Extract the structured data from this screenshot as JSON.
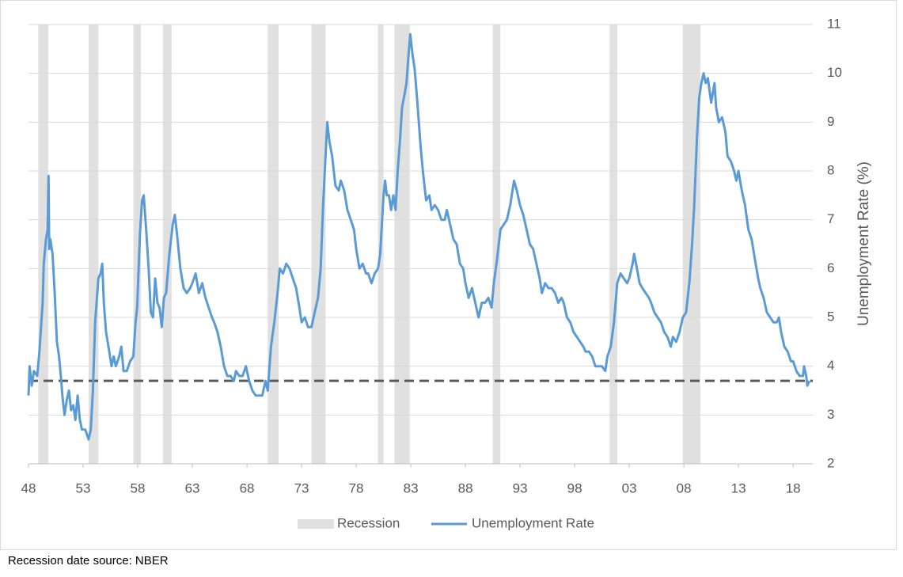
{
  "chart_data": {
    "type": "line",
    "y_label": "Unemployment Rate (%)",
    "footnote": "Recession date source: NBER",
    "xlim": [
      1948,
      2019.8
    ],
    "ylim": [
      2,
      11
    ],
    "xticks": [
      {
        "value": 1948,
        "label": "48"
      },
      {
        "value": 1953,
        "label": "53"
      },
      {
        "value": 1958,
        "label": "58"
      },
      {
        "value": 1963,
        "label": "63"
      },
      {
        "value": 1968,
        "label": "68"
      },
      {
        "value": 1973,
        "label": "73"
      },
      {
        "value": 1978,
        "label": "78"
      },
      {
        "value": 1983,
        "label": "83"
      },
      {
        "value": 1988,
        "label": "88"
      },
      {
        "value": 1993,
        "label": "93"
      },
      {
        "value": 1998,
        "label": "98"
      },
      {
        "value": 2003,
        "label": "03"
      },
      {
        "value": 2008,
        "label": "08"
      },
      {
        "value": 2013,
        "label": "13"
      },
      {
        "value": 2018,
        "label": "18"
      }
    ],
    "yticks": [
      2,
      3,
      4,
      5,
      6,
      7,
      8,
      9,
      10,
      11
    ],
    "grid": true,
    "recessions": {
      "name": "Recession",
      "color": "#e0e0e0",
      "ranges": [
        [
          1948.9,
          1949.8
        ],
        [
          1953.5,
          1954.4
        ],
        [
          1957.6,
          1958.3
        ],
        [
          1960.3,
          1961.1
        ],
        [
          1969.9,
          1970.9
        ],
        [
          1973.9,
          1975.2
        ],
        [
          1980.0,
          1980.5
        ],
        [
          1981.5,
          1982.9
        ],
        [
          1990.5,
          1991.2
        ],
        [
          2001.2,
          2001.9
        ],
        [
          2007.9,
          2009.5
        ]
      ]
    },
    "reference_line": {
      "value": 3.7,
      "color": "#595959"
    },
    "series": [
      {
        "name": "Unemployment Rate",
        "color": "#5b9bd5",
        "x": [
          1948.0,
          1948.1,
          1948.3,
          1948.5,
          1948.8,
          1949.0,
          1949.3,
          1949.4,
          1949.6,
          1949.75,
          1949.83,
          1949.9,
          1950.0,
          1950.2,
          1950.4,
          1950.6,
          1950.8,
          1951.0,
          1951.1,
          1951.3,
          1951.5,
          1951.7,
          1951.9,
          1952.1,
          1952.3,
          1952.5,
          1952.7,
          1952.9,
          1953.2,
          1953.5,
          1953.7,
          1953.9,
          1954.1,
          1954.4,
          1954.6,
          1954.75,
          1954.9,
          1955.1,
          1955.4,
          1955.6,
          1955.8,
          1956.0,
          1956.3,
          1956.5,
          1956.7,
          1957.0,
          1957.3,
          1957.6,
          1957.8,
          1957.95,
          1958.2,
          1958.4,
          1958.55,
          1958.8,
          1959.0,
          1959.2,
          1959.4,
          1959.6,
          1959.8,
          1960.0,
          1960.2,
          1960.4,
          1960.6,
          1960.9,
          1961.2,
          1961.4,
          1961.6,
          1961.9,
          1962.2,
          1962.5,
          1962.8,
          1963.0,
          1963.3,
          1963.6,
          1963.9,
          1964.2,
          1964.5,
          1964.8,
          1965.0,
          1965.3,
          1965.6,
          1965.9,
          1966.2,
          1966.5,
          1966.8,
          1967.0,
          1967.3,
          1967.6,
          1967.9,
          1968.2,
          1968.5,
          1968.8,
          1969.0,
          1969.4,
          1969.7,
          1969.9,
          1970.2,
          1970.5,
          1970.8,
          1971.0,
          1971.3,
          1971.6,
          1971.9,
          1972.2,
          1972.5,
          1972.8,
          1973.0,
          1973.3,
          1973.6,
          1973.9,
          1974.2,
          1974.5,
          1974.75,
          1974.95,
          1975.15,
          1975.35,
          1975.55,
          1975.8,
          1976.1,
          1976.4,
          1976.6,
          1976.9,
          1977.2,
          1977.5,
          1977.8,
          1978.0,
          1978.3,
          1978.6,
          1978.9,
          1979.1,
          1979.4,
          1979.7,
          1980.0,
          1980.2,
          1980.35,
          1980.5,
          1980.65,
          1980.8,
          1981.0,
          1981.2,
          1981.4,
          1981.6,
          1981.8,
          1982.0,
          1982.2,
          1982.45,
          1982.6,
          1982.8,
          1982.95,
          1983.15,
          1983.35,
          1983.6,
          1983.9,
          1984.1,
          1984.4,
          1984.7,
          1984.9,
          1985.2,
          1985.5,
          1985.8,
          1986.1,
          1986.3,
          1986.6,
          1986.9,
          1987.2,
          1987.5,
          1987.8,
          1988.0,
          1988.3,
          1988.6,
          1988.9,
          1989.2,
          1989.5,
          1989.8,
          1990.1,
          1990.4,
          1990.6,
          1990.9,
          1991.2,
          1991.5,
          1991.8,
          1992.1,
          1992.45,
          1992.7,
          1993.0,
          1993.3,
          1993.6,
          1993.9,
          1994.2,
          1994.5,
          1994.8,
          1995.0,
          1995.3,
          1995.6,
          1995.9,
          1996.2,
          1996.5,
          1996.8,
          1997.0,
          1997.3,
          1997.6,
          1997.9,
          1998.2,
          1998.5,
          1998.8,
          1999.0,
          1999.3,
          1999.6,
          1999.9,
          2000.2,
          2000.5,
          2000.8,
          2001.0,
          2001.3,
          2001.6,
          2001.9,
          2002.2,
          2002.5,
          2002.8,
          2003.0,
          2003.3,
          2003.45,
          2003.7,
          2003.95,
          2004.2,
          2004.5,
          2004.8,
          2005.0,
          2005.3,
          2005.6,
          2005.9,
          2006.2,
          2006.5,
          2006.8,
          2007.0,
          2007.3,
          2007.6,
          2007.9,
          2008.2,
          2008.5,
          2008.75,
          2008.95,
          2009.2,
          2009.4,
          2009.6,
          2009.8,
          2010.0,
          2010.2,
          2010.5,
          2010.8,
          2010.95,
          2011.2,
          2011.5,
          2011.8,
          2012.0,
          2012.3,
          2012.6,
          2012.8,
          2013.0,
          2013.3,
          2013.6,
          2013.9,
          2014.2,
          2014.5,
          2014.8,
          2015.0,
          2015.3,
          2015.6,
          2015.9,
          2016.2,
          2016.5,
          2016.7,
          2016.9,
          2017.2,
          2017.5,
          2017.8,
          2018.0,
          2018.3,
          2018.6,
          2018.9,
          2019.0,
          2019.2,
          2019.3,
          2019.5
        ],
        "values": [
          3.4,
          4.0,
          3.6,
          3.9,
          3.8,
          4.3,
          5.3,
          6.1,
          6.6,
          6.8,
          7.9,
          6.4,
          6.6,
          6.3,
          5.5,
          4.5,
          4.2,
          3.7,
          3.4,
          3.0,
          3.3,
          3.5,
          3.1,
          3.2,
          2.9,
          3.4,
          2.9,
          2.7,
          2.7,
          2.5,
          2.7,
          3.5,
          4.9,
          5.8,
          5.9,
          6.1,
          5.3,
          4.7,
          4.3,
          4.0,
          4.2,
          4.0,
          4.2,
          4.4,
          3.9,
          3.9,
          4.1,
          4.2,
          4.9,
          5.2,
          6.7,
          7.4,
          7.5,
          6.7,
          6.0,
          5.1,
          5.0,
          5.8,
          5.3,
          5.2,
          4.8,
          5.4,
          5.5,
          6.3,
          6.9,
          7.1,
          6.7,
          6.0,
          5.6,
          5.5,
          5.6,
          5.7,
          5.9,
          5.5,
          5.7,
          5.4,
          5.2,
          5.0,
          4.9,
          4.7,
          4.4,
          4.0,
          3.8,
          3.8,
          3.7,
          3.9,
          3.8,
          3.8,
          4.0,
          3.7,
          3.5,
          3.4,
          3.4,
          3.4,
          3.7,
          3.5,
          4.4,
          4.9,
          5.5,
          6.0,
          5.9,
          6.1,
          6.0,
          5.8,
          5.6,
          5.2,
          4.9,
          5.0,
          4.8,
          4.8,
          5.1,
          5.4,
          6.0,
          7.2,
          8.1,
          9.0,
          8.6,
          8.3,
          7.7,
          7.6,
          7.8,
          7.6,
          7.2,
          7.0,
          6.8,
          6.4,
          6.0,
          6.1,
          5.9,
          5.9,
          5.7,
          5.9,
          6.0,
          6.3,
          6.9,
          7.5,
          7.8,
          7.5,
          7.5,
          7.2,
          7.5,
          7.2,
          8.0,
          8.6,
          9.3,
          9.6,
          9.8,
          10.4,
          10.8,
          10.4,
          10.1,
          9.4,
          8.5,
          8.0,
          7.4,
          7.5,
          7.2,
          7.3,
          7.2,
          7.0,
          7.0,
          7.2,
          6.9,
          6.6,
          6.5,
          6.1,
          6.0,
          5.7,
          5.4,
          5.6,
          5.3,
          5.0,
          5.3,
          5.3,
          5.4,
          5.2,
          5.7,
          6.2,
          6.8,
          6.9,
          7.0,
          7.3,
          7.8,
          7.6,
          7.3,
          7.1,
          6.8,
          6.5,
          6.4,
          6.1,
          5.8,
          5.5,
          5.7,
          5.6,
          5.6,
          5.5,
          5.3,
          5.4,
          5.3,
          5.0,
          4.9,
          4.7,
          4.6,
          4.5,
          4.4,
          4.3,
          4.3,
          4.2,
          4.0,
          4.0,
          4.0,
          3.9,
          4.2,
          4.4,
          4.9,
          5.7,
          5.9,
          5.8,
          5.7,
          5.8,
          6.1,
          6.3,
          6.0,
          5.7,
          5.6,
          5.5,
          5.4,
          5.3,
          5.1,
          5.0,
          4.9,
          4.7,
          4.6,
          4.4,
          4.6,
          4.5,
          4.7,
          5.0,
          5.1,
          5.7,
          6.5,
          7.3,
          8.7,
          9.5,
          9.8,
          10.0,
          9.8,
          9.9,
          9.4,
          9.8,
          9.3,
          9.0,
          9.1,
          8.8,
          8.3,
          8.2,
          8.0,
          7.8,
          8.0,
          7.6,
          7.3,
          6.8,
          6.6,
          6.2,
          5.8,
          5.6,
          5.4,
          5.1,
          5.0,
          4.9,
          4.9,
          5.0,
          4.7,
          4.4,
          4.3,
          4.1,
          4.1,
          3.9,
          3.8,
          3.8,
          4.0,
          3.8,
          3.6,
          3.7
        ]
      }
    ]
  }
}
